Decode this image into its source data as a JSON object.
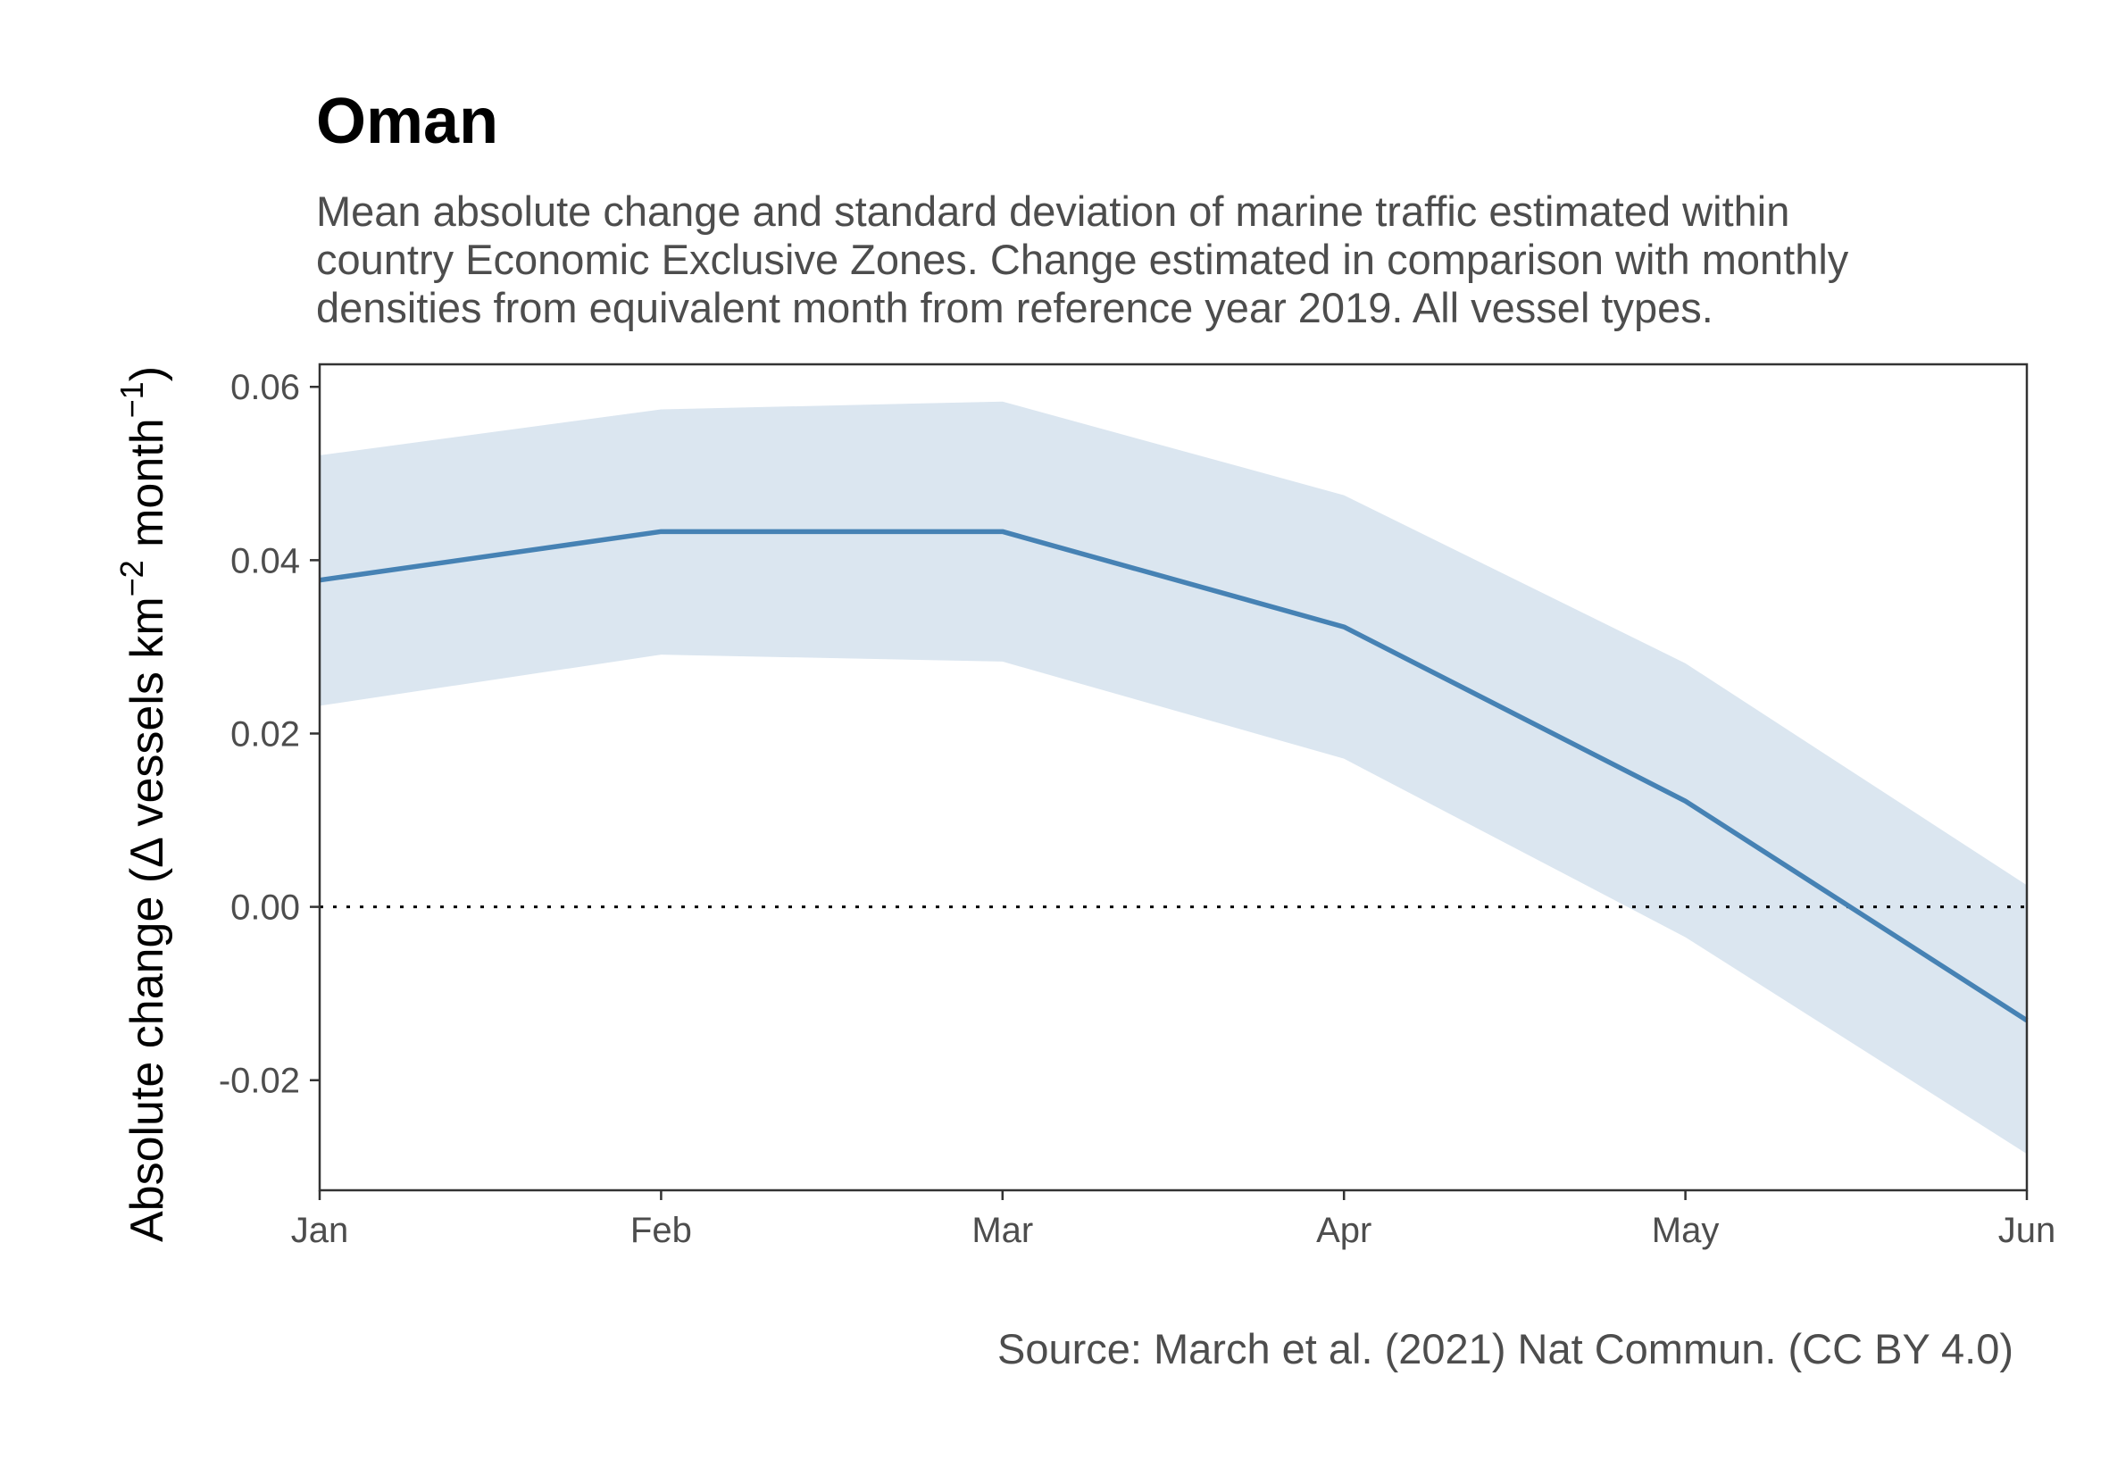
{
  "chart_data": {
    "type": "area",
    "title": "Oman",
    "subtitle_lines": [
      "Mean absolute change and standard deviation of marine traffic estimated within",
      "country Economic Exclusive Zones. Change estimated in comparison with monthly",
      "densities from equivalent month from reference year 2019. All vessel types."
    ],
    "caption": "Source: March et al. (2021) Nat Commun. (CC BY 4.0)",
    "ylabel": {
      "prefix": "Absolute change (",
      "delta": "Δ",
      "text1": " vessels km",
      "sup1": "−2",
      "text2": " month",
      "sup2": "−1",
      "suffix": ")"
    },
    "xlabel": "",
    "categories": [
      "Jan",
      "Feb",
      "Mar",
      "Apr",
      "May",
      "Jun"
    ],
    "series": [
      {
        "mean": [
          0.0377,
          0.0433,
          0.0433,
          0.0323,
          0.0122,
          -0.0131
        ],
        "lower": [
          0.0232,
          0.0291,
          0.0283,
          0.0171,
          -0.0035,
          -0.0285
        ],
        "upper": [
          0.0521,
          0.0574,
          0.0583,
          0.0475,
          0.0281,
          0.0025
        ]
      }
    ],
    "yticks": [
      0.06,
      0.04,
      0.02,
      0.0,
      -0.02
    ],
    "ytick_labels": [
      "0.06",
      "0.04",
      "0.02",
      "0.00",
      "-0.02"
    ],
    "ylim": [
      -0.0327,
      0.0626
    ],
    "reference_line": 0,
    "grid": false,
    "colors": {
      "line": "#4682b4",
      "ribbon": "#dbe6f0",
      "reference": "#000000",
      "axis": "#333333"
    }
  }
}
